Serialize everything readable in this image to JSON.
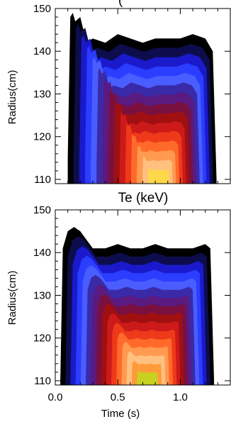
{
  "chart_data": [
    {
      "type": "area",
      "title": "",
      "xlabel": "",
      "ylabel": "Radius(cm)",
      "xlim": [
        0.0,
        1.4
      ],
      "ylim": [
        109,
        150
      ],
      "xticks": [],
      "yticks": [
        110,
        120,
        130,
        140,
        150
      ],
      "top_title_partial": "(",
      "colormap": [
        "#000000",
        "#0d0d4d",
        "#1a1acc",
        "#2b3dff",
        "#4a5dff",
        "#3a2aa8",
        "#5a1a80",
        "#7a1040",
        "#a01010",
        "#cc1a1a",
        "#ee3a1a",
        "#ff6a2a",
        "#ff9a50",
        "#ffc080",
        "#ffd84a"
      ],
      "x": [
        0.1,
        0.12,
        0.14,
        0.16,
        0.2,
        0.25,
        0.3,
        0.4,
        0.5,
        0.6,
        0.7,
        0.8,
        0.9,
        1.0,
        1.1,
        1.2,
        1.26,
        1.29
      ],
      "boundary_top": [
        115,
        148,
        149,
        147,
        148,
        142,
        143,
        142,
        144,
        143,
        142,
        143,
        143,
        143,
        144,
        143,
        140,
        110
      ]
    },
    {
      "type": "area",
      "title": "Te (keV)",
      "xlabel": "Time (s)",
      "ylabel": "Radius(cm)",
      "xlim": [
        0.0,
        1.4
      ],
      "ylim": [
        109,
        150
      ],
      "xticks": [
        0.0,
        0.5,
        1.0
      ],
      "xtick_labels": [
        "0.0",
        "0.5",
        "1.0"
      ],
      "yticks": [
        110,
        120,
        130,
        140,
        150
      ],
      "colormap": [
        "#000000",
        "#0d0d4d",
        "#1a1acc",
        "#2b3dff",
        "#4a5dff",
        "#3a2aa8",
        "#5a1a80",
        "#7a1040",
        "#a01010",
        "#cc1a1a",
        "#ee3a1a",
        "#ff6a2a",
        "#ff9a50",
        "#ffc080",
        "#ff9a3a",
        "#c8d020"
      ],
      "x": [
        0.04,
        0.06,
        0.1,
        0.15,
        0.2,
        0.25,
        0.3,
        0.4,
        0.5,
        0.6,
        0.7,
        0.8,
        0.9,
        1.0,
        1.1,
        1.2,
        1.24,
        1.27
      ],
      "boundary_top": [
        110,
        141,
        145,
        146,
        145,
        143,
        141,
        141,
        142,
        141,
        141,
        142,
        141,
        141,
        141,
        142,
        141,
        110
      ]
    }
  ]
}
